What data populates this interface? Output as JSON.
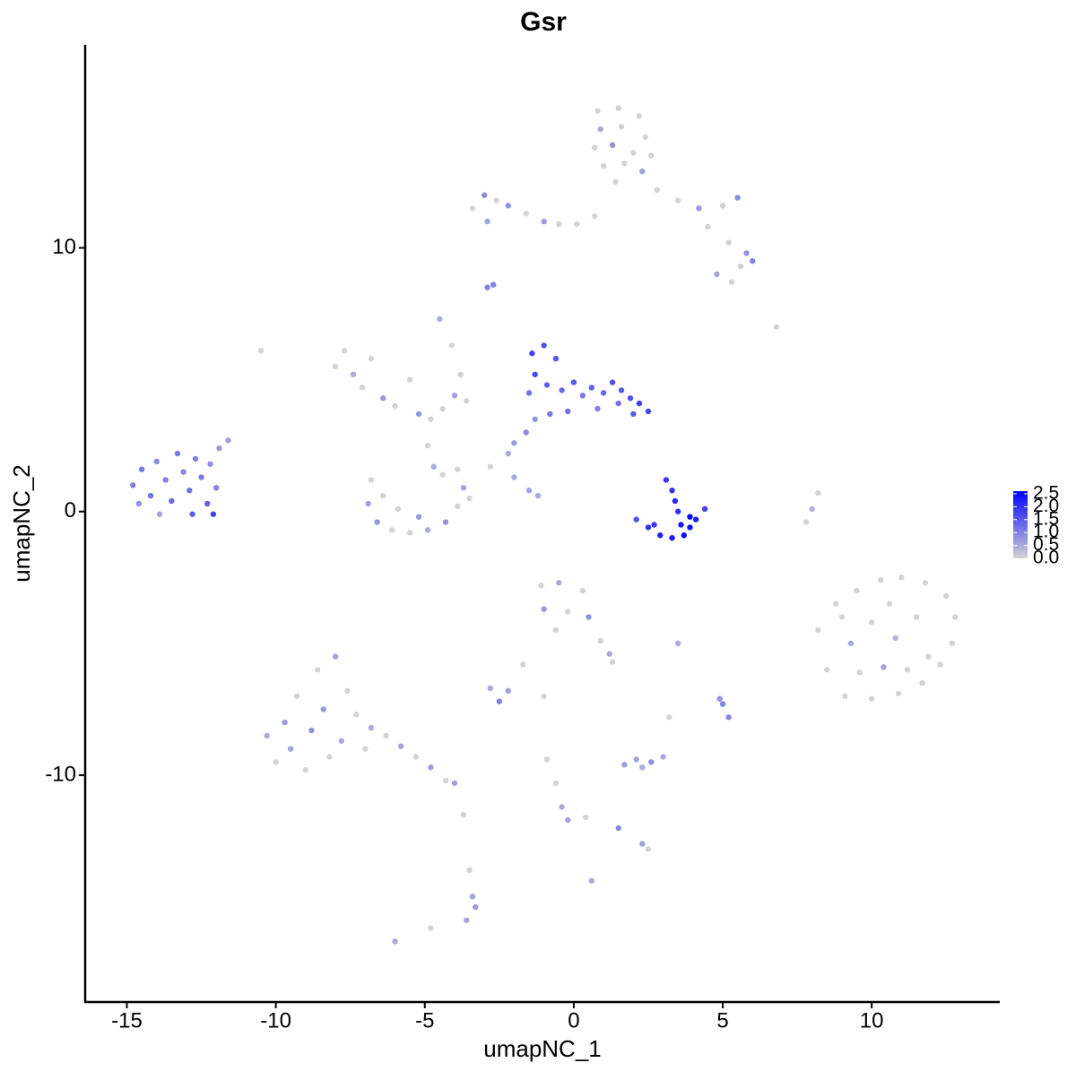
{
  "chart_data": {
    "type": "scatter",
    "title": "Gsr",
    "x_label": "umapNC_1",
    "y_label": "umapNC_2",
    "xlim": [
      -16.4,
      14.3
    ],
    "ylim": [
      -18.6,
      17.7
    ],
    "xticks": [
      -15,
      -10,
      -5,
      0,
      5,
      10
    ],
    "yticks": [
      -10,
      0,
      10
    ],
    "grid": false,
    "x": [
      0.8,
      1.5,
      2.2,
      0.9,
      1.6,
      2.4,
      0.7,
      1.3,
      2.0,
      2.6,
      1.0,
      1.7,
      2.3,
      1.4,
      2.8,
      3.5,
      4.2,
      5.0,
      5.5,
      4.5,
      5.2,
      5.8,
      6.0,
      4.8,
      5.3,
      5.6,
      -3.4,
      -3.0,
      -2.6,
      -2.2,
      -1.6,
      -1.0,
      -0.5,
      0.1,
      0.7,
      -2.9,
      -2.7,
      -2.9,
      -4.5,
      -4.1,
      -3.8,
      -10.5,
      6.8,
      -14.8,
      -14.5,
      -14.2,
      -14.0,
      -13.7,
      -13.5,
      -13.3,
      -13.1,
      -12.9,
      -12.7,
      -12.5,
      -12.3,
      -12.8,
      -12.1,
      -12.2,
      -11.9,
      -11.6,
      -14.6,
      -13.9,
      -12.0,
      -8.0,
      -7.7,
      -7.4,
      -7.1,
      -6.8,
      -6.4,
      -6.0,
      -5.5,
      -5.2,
      -4.8,
      -4.4,
      -4.0,
      -3.6,
      -4.9,
      -4.7,
      -6.8,
      -6.9,
      -6.6,
      -6.1,
      -5.5,
      -4.9,
      -4.3,
      -3.9,
      -3.7,
      -3.9,
      -4.4,
      -5.2,
      -5.9,
      -6.4,
      -3.5,
      -2.8,
      -2.0,
      -1.5,
      -1.2,
      -1.4,
      -1.0,
      -0.6,
      -1.3,
      -0.9,
      -1.5,
      -0.4,
      0.0,
      0.3,
      0.6,
      1.0,
      1.3,
      1.6,
      1.9,
      2.2,
      2.5,
      2.0,
      1.5,
      0.8,
      -0.2,
      -0.8,
      -1.3,
      -1.6,
      -2.0,
      -2.2,
      3.1,
      3.3,
      3.4,
      3.5,
      2.1,
      2.5,
      2.9,
      3.3,
      3.7,
      3.9,
      4.1,
      4.4,
      3.9,
      2.7,
      3.6,
      8.2,
      8.0,
      7.8,
      8.2,
      8.8,
      9.5,
      10.3,
      11.0,
      11.8,
      12.5,
      12.8,
      12.7,
      12.3,
      11.7,
      10.9,
      10.0,
      9.1,
      8.5,
      9.3,
      10.0,
      10.8,
      11.5,
      11.9,
      10.4,
      9.6,
      10.6,
      11.2,
      9.0,
      -1.1,
      -0.5,
      0.3,
      -1.0,
      -0.2,
      0.5,
      -0.6,
      0.9,
      1.2,
      1.3,
      -10.3,
      -10.0,
      -9.7,
      -9.5,
      -9.3,
      -9.0,
      -8.8,
      -8.6,
      -8.4,
      -8.2,
      -8.0,
      -7.8,
      -7.6,
      -7.3,
      -7.0,
      -6.8,
      -6.3,
      -5.8,
      -5.3,
      -4.8,
      -4.3,
      -4.0,
      -2.8,
      -2.5,
      -2.2,
      -1.7,
      -1.0,
      5.0,
      5.2,
      4.9,
      3.2,
      3.5,
      1.7,
      2.1,
      2.6,
      3.0,
      2.3,
      -0.9,
      -0.6,
      -0.4,
      -0.2,
      0.4,
      1.5,
      2.3,
      2.5,
      -3.7,
      -3.5,
      -3.4,
      -3.3,
      -3.6,
      0.6,
      -6.0,
      -4.8
    ],
    "values": [
      15.2,
      15.3,
      15.0,
      14.5,
      14.6,
      14.2,
      13.8,
      13.9,
      13.6,
      13.5,
      13.1,
      13.2,
      12.9,
      12.5,
      12.2,
      11.8,
      11.5,
      11.6,
      11.9,
      10.8,
      10.2,
      9.8,
      9.5,
      9.0,
      8.7,
      9.3,
      11.5,
      12.0,
      11.8,
      11.6,
      11.3,
      11.0,
      10.9,
      10.9,
      11.2,
      11.0,
      8.6,
      8.5,
      7.3,
      6.3,
      5.2,
      6.1,
      7.0,
      1.0,
      1.6,
      0.6,
      1.9,
      1.2,
      0.4,
      2.2,
      1.5,
      0.8,
      2.0,
      1.3,
      0.3,
      -0.1,
      -0.1,
      1.8,
      2.4,
      2.7,
      0.3,
      -0.1,
      0.9,
      5.5,
      6.1,
      5.2,
      4.7,
      5.8,
      4.3,
      4.0,
      5.0,
      3.7,
      3.5,
      3.9,
      4.4,
      4.2,
      2.5,
      1.7,
      1.2,
      0.3,
      -0.4,
      -0.7,
      -0.8,
      -0.7,
      -0.4,
      0.2,
      0.9,
      1.6,
      1.4,
      -0.2,
      0.1,
      0.6,
      0.5,
      1.7,
      1.3,
      0.8,
      0.6,
      6.0,
      6.3,
      5.8,
      5.2,
      4.8,
      4.5,
      4.6,
      4.9,
      4.4,
      4.7,
      4.5,
      4.9,
      4.6,
      4.3,
      4.1,
      3.8,
      3.7,
      4.1,
      3.9,
      3.8,
      3.7,
      3.5,
      3.0,
      2.6,
      2.2,
      1.2,
      0.8,
      0.4,
      0.0,
      -0.3,
      -0.6,
      -0.9,
      -1.0,
      -0.9,
      -0.6,
      -0.3,
      0.1,
      -0.2,
      -0.5,
      -0.5,
      0.7,
      0.1,
      -0.4,
      -4.5,
      -3.5,
      -3.0,
      -2.6,
      -2.5,
      -2.7,
      -3.2,
      -4.0,
      -5.0,
      -5.8,
      -6.5,
      -6.9,
      -7.1,
      -7.0,
      -6.0,
      -5.0,
      -4.2,
      -4.8,
      -4.0,
      -5.5,
      -5.9,
      -6.1,
      -3.5,
      -6.0,
      -4.0,
      -2.8,
      -2.7,
      -3.0,
      -3.7,
      -3.8,
      -4.0,
      -4.5,
      -4.9,
      -5.4,
      -5.7,
      -8.5,
      -9.5,
      -8.0,
      -9.0,
      -7.0,
      -9.8,
      -8.3,
      -6.0,
      -7.5,
      -9.3,
      -5.5,
      -8.7,
      -6.8,
      -7.7,
      -9.0,
      -8.2,
      -8.5,
      -8.9,
      -9.3,
      -9.7,
      -10.2,
      -10.3,
      -6.7,
      -7.2,
      -6.8,
      -5.8,
      -7.0,
      -7.3,
      -7.8,
      -7.1,
      -7.8,
      -5.0,
      -9.6,
      -9.4,
      -9.5,
      -9.3,
      -9.7,
      -9.4,
      -10.3,
      -11.2,
      -11.7,
      -11.6,
      -12.0,
      -12.6,
      -12.8,
      -11.5,
      -13.6,
      -14.6,
      -15.0,
      -15.5,
      -14.0,
      -16.3,
      -15.8
    ],
    "color_values": [
      0,
      0,
      0,
      0.5,
      0,
      0,
      0,
      0.8,
      0,
      0,
      0,
      0,
      0.6,
      0,
      0,
      0,
      0.7,
      0,
      0.9,
      0,
      0,
      0.8,
      1.0,
      0.6,
      0,
      0,
      0,
      0.9,
      0,
      0.8,
      0,
      0.7,
      0,
      0,
      0,
      0.6,
      1.0,
      1.0,
      0.5,
      0,
      0,
      0,
      0,
      1.0,
      1.1,
      1.2,
      0.9,
      1.0,
      1.3,
      1.1,
      0.9,
      1.2,
      1.0,
      1.1,
      1.4,
      1.5,
      1.8,
      0.8,
      0.7,
      0.6,
      0.8,
      0.6,
      1.0,
      0,
      0,
      0.5,
      0,
      0,
      0.7,
      0,
      0,
      0.8,
      0,
      0,
      0.6,
      0,
      0,
      0.5,
      0,
      0.6,
      0.8,
      0,
      0,
      0.5,
      0.8,
      0,
      0.6,
      0,
      0,
      0.7,
      0,
      0,
      0,
      0,
      0.5,
      0.6,
      0.5,
      1.8,
      1.6,
      1.5,
      1.7,
      1.4,
      1.2,
      1.3,
      1.5,
      1.1,
      1.4,
      1.3,
      1.6,
      1.5,
      1.6,
      1.8,
      1.7,
      1.5,
      1.2,
      1.0,
      1.2,
      1.1,
      0.8,
      0.9,
      0.7,
      0.5,
      1.9,
      2.0,
      2.1,
      2.0,
      1.6,
      2.0,
      2.2,
      2.3,
      2.5,
      2.4,
      2.2,
      1.8,
      2.6,
      1.9,
      2.3,
      0,
      0.4,
      0,
      0,
      0,
      0,
      0,
      0,
      0,
      0,
      0,
      0,
      0,
      0,
      0,
      0,
      0,
      0,
      0.5,
      0,
      0.4,
      0,
      0,
      0.6,
      0,
      0,
      0,
      0,
      0,
      0.5,
      0,
      0.7,
      0,
      0.8,
      0,
      0,
      0.5,
      0,
      0.5,
      0,
      0.7,
      0.6,
      0,
      0,
      0.8,
      0,
      0.7,
      0,
      0.6,
      0.5,
      0,
      0,
      0,
      0.5,
      0,
      0.6,
      0,
      0.7,
      0,
      0.6,
      0.5,
      1.0,
      0.6,
      0,
      0,
      1.0,
      0.9,
      0.8,
      0,
      0.5,
      0.7,
      0.6,
      0.8,
      0.5,
      0.5,
      0,
      0,
      0.5,
      0.6,
      0,
      0.9,
      0.6,
      0,
      0,
      0,
      0.6,
      0.7,
      0.6,
      0.5,
      0.5,
      0
    ],
    "colorbar": {
      "colors": [
        "#d3d3d3",
        "#0000ff"
      ],
      "lim": [
        0,
        2.6
      ],
      "ticks": [
        {
          "value": 0,
          "label": "0.0"
        },
        0.5,
        {
          "value": 1,
          "label": "1.0"
        },
        1.5,
        {
          "value": 2,
          "label": "2.0"
        },
        2.5
      ]
    }
  }
}
